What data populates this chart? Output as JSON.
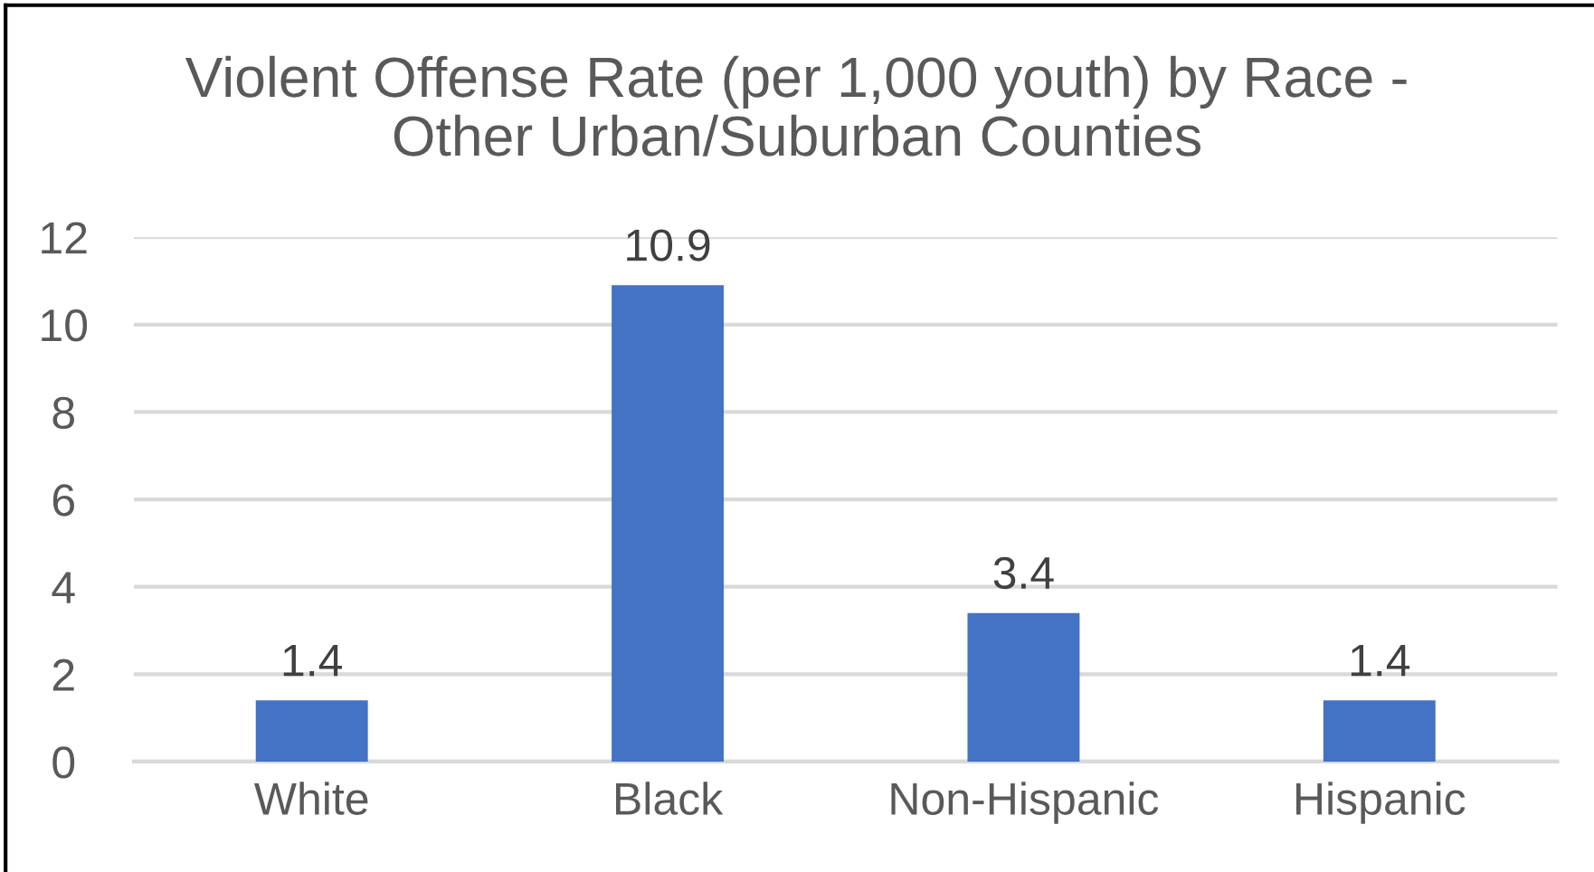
{
  "chart_data": {
    "type": "bar",
    "title": "Violent Offense Rate (per 1,000 youth) by Race -\nOther Urban/Suburban Counties",
    "categories": [
      "White",
      "Black",
      "Non-Hispanic",
      "Hispanic"
    ],
    "values": [
      1.4,
      10.9,
      3.4,
      1.4
    ],
    "color": "#4472c4",
    "ylim": [
      0,
      12
    ],
    "yticks": [
      0,
      2,
      4,
      6,
      8,
      10,
      12
    ],
    "grid": "y",
    "data_labels": true,
    "legend": false
  }
}
